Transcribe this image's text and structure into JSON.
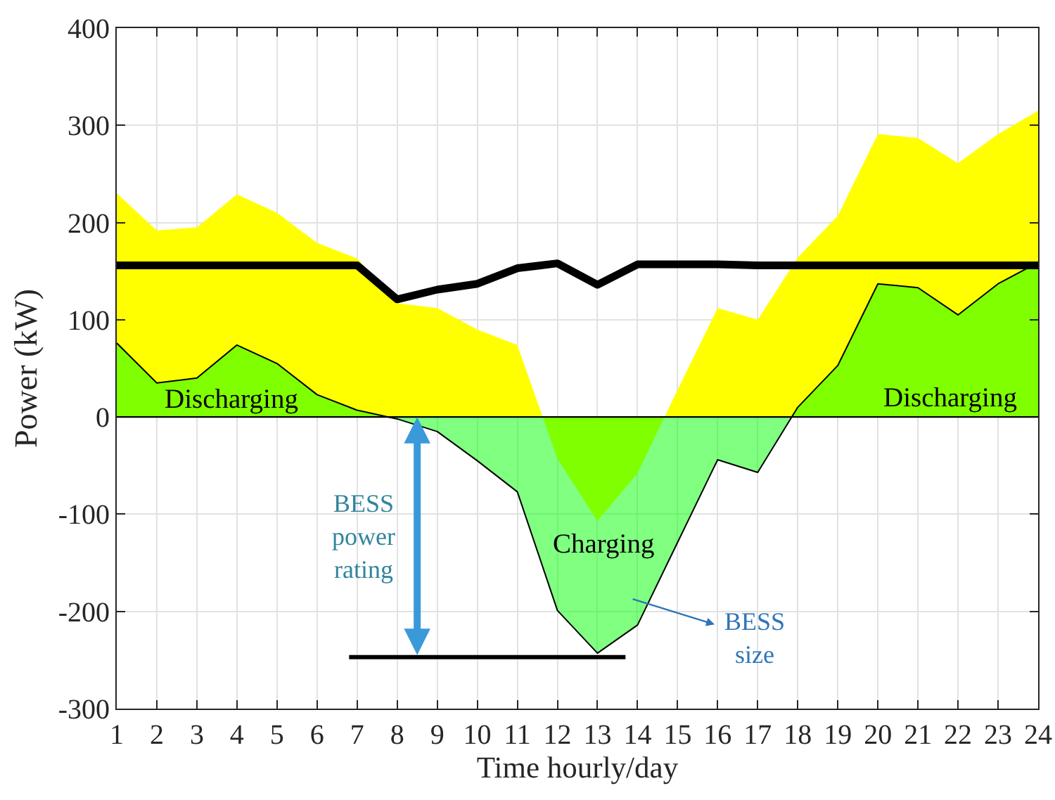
{
  "chart_data": {
    "type": "area",
    "xlabel": "Time hourly/day",
    "ylabel": "Power (kW)",
    "x": [
      1,
      2,
      3,
      4,
      5,
      6,
      7,
      8,
      9,
      10,
      11,
      12,
      13,
      14,
      15,
      16,
      17,
      18,
      19,
      20,
      21,
      22,
      23,
      24
    ],
    "series": [
      {
        "color": "#ffff00",
        "values": [
          230,
          192,
          195,
          229,
          210,
          179,
          163,
          117,
          112,
          90,
          74,
          -43,
          -107,
          -58,
          28,
          112,
          100,
          164,
          207,
          291,
          287,
          261,
          291,
          315
        ]
      },
      {
        "color": "#80ff80",
        "line_style": "solid",
        "values": [
          76,
          35,
          40,
          74,
          55,
          23,
          7,
          -2,
          -15,
          -45,
          -77,
          -199,
          -243,
          -214,
          -129,
          -44,
          -57,
          10,
          53,
          137,
          133,
          105,
          137,
          159
        ]
      },
      {
        "type": "line",
        "color": "#000000",
        "values": [
          156,
          156,
          156,
          156,
          156,
          156,
          156,
          121,
          131,
          137,
          153,
          158,
          136,
          157,
          157,
          157,
          156,
          156,
          156,
          156,
          156,
          156,
          156,
          156
        ]
      },
      {
        "type": "line",
        "color": "#000000",
        "x": [
          6.8,
          13.7
        ],
        "values": [
          -247,
          -247
        ]
      }
    ],
    "xlim": [
      1,
      24
    ],
    "xticks": [
      1,
      2,
      3,
      4,
      5,
      6,
      7,
      8,
      9,
      10,
      11,
      12,
      13,
      14,
      15,
      16,
      17,
      18,
      19,
      20,
      21,
      22,
      23,
      24
    ],
    "ylim": [
      -300,
      400
    ],
    "yticks": [
      -300,
      -200,
      -100,
      0,
      100,
      200,
      300,
      400
    ],
    "grid": true,
    "ref_lines": [
      {
        "axis": "y",
        "value": 0,
        "color": "#000000"
      }
    ],
    "annotations": [
      "Discharging",
      "Discharging",
      "Charging",
      {
        "text": "BESS power rating",
        "x": 8.5,
        "y": 0
      },
      "BESS size"
    ]
  }
}
